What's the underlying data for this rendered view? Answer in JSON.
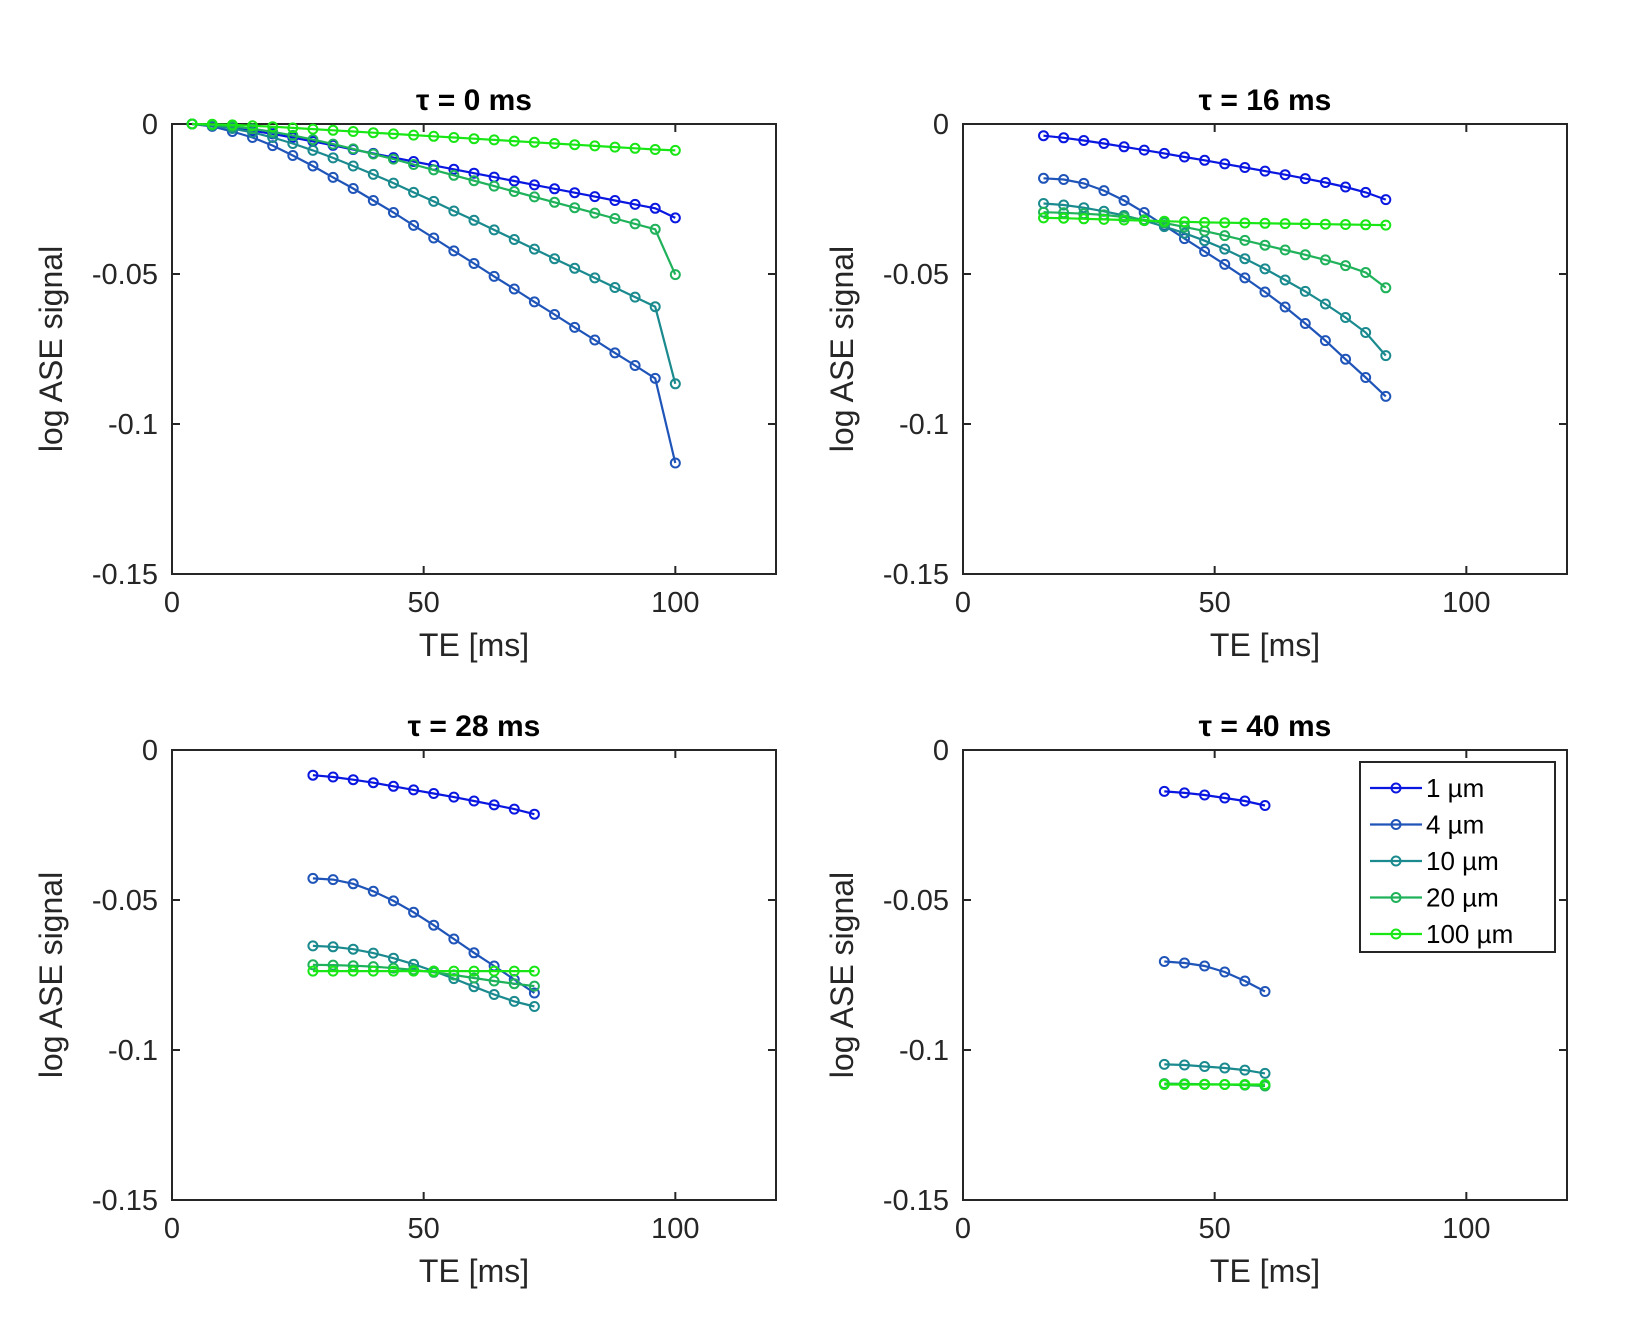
{
  "figure": {
    "series_styles": [
      {
        "name": "1 µm",
        "color": "#0a17e0"
      },
      {
        "name": "4 µm",
        "color": "#1f54b8"
      },
      {
        "name": "10 µm",
        "color": "#1a8a8e"
      },
      {
        "name": "20 µm",
        "color": "#1fb25a"
      },
      {
        "name": "100 µm",
        "color": "#19e615"
      }
    ]
  },
  "chart_data": [
    {
      "type": "line",
      "title": "τ = 0 ms",
      "xlabel": "TE  [ms]",
      "ylabel": "log ASE signal",
      "xlim": [
        0,
        120
      ],
      "ylim": [
        -0.15,
        0
      ],
      "xticks": [
        0,
        50,
        100
      ],
      "xtick_labels": [
        "0",
        "50",
        "100"
      ],
      "yticks": [
        0,
        -0.05,
        -0.1,
        -0.15
      ],
      "ytick_labels": [
        "0",
        "-0.05",
        "-0.1",
        "-0.15"
      ],
      "x": [
        4,
        8,
        12,
        16,
        20,
        24,
        28,
        32,
        36,
        40,
        44,
        48,
        52,
        56,
        60,
        64,
        68,
        72,
        76,
        80,
        84,
        88,
        92,
        96,
        100
      ],
      "series": [
        {
          "name": "1 µm",
          "values": [
            0,
            -0.0004,
            -0.0012,
            -0.0022,
            -0.0033,
            -0.0045,
            -0.0058,
            -0.0071,
            -0.0085,
            -0.0098,
            -0.0112,
            -0.0125,
            -0.0138,
            -0.0151,
            -0.0164,
            -0.0177,
            -0.019,
            -0.0203,
            -0.0216,
            -0.0229,
            -0.0242,
            -0.0255,
            -0.0268,
            -0.0281,
            -0.0313
          ]
        },
        {
          "name": "4 µm",
          "values": [
            0,
            -0.0008,
            -0.0025,
            -0.0045,
            -0.0072,
            -0.0105,
            -0.014,
            -0.0178,
            -0.0215,
            -0.0255,
            -0.0295,
            -0.0338,
            -0.038,
            -0.0423,
            -0.0465,
            -0.0508,
            -0.055,
            -0.0593,
            -0.0635,
            -0.0678,
            -0.072,
            -0.0763,
            -0.0805,
            -0.0848,
            -0.113
          ]
        },
        {
          "name": "10 µm",
          "values": [
            0,
            -0.0005,
            -0.0015,
            -0.0028,
            -0.0045,
            -0.0065,
            -0.0088,
            -0.0113,
            -0.014,
            -0.0168,
            -0.0197,
            -0.0228,
            -0.0258,
            -0.029,
            -0.0321,
            -0.0353,
            -0.0385,
            -0.0417,
            -0.0449,
            -0.0481,
            -0.0513,
            -0.0545,
            -0.0577,
            -0.0609,
            -0.0866
          ]
        },
        {
          "name": "20 µm",
          "values": [
            0,
            -0.0003,
            -0.0008,
            -0.0016,
            -0.0026,
            -0.0038,
            -0.0052,
            -0.0067,
            -0.0083,
            -0.01,
            -0.0117,
            -0.0135,
            -0.0153,
            -0.0171,
            -0.0189,
            -0.0207,
            -0.0225,
            -0.0243,
            -0.0261,
            -0.0279,
            -0.0297,
            -0.0315,
            -0.0333,
            -0.0351,
            -0.0502
          ]
        },
        {
          "name": "100 µm",
          "values": [
            0,
            -0.0001,
            -0.0003,
            -0.0006,
            -0.0009,
            -0.0013,
            -0.0017,
            -0.0021,
            -0.0025,
            -0.0029,
            -0.0033,
            -0.0037,
            -0.0041,
            -0.0045,
            -0.0049,
            -0.0053,
            -0.0057,
            -0.0061,
            -0.0065,
            -0.0069,
            -0.0073,
            -0.0077,
            -0.0081,
            -0.0085,
            -0.0088
          ]
        }
      ]
    },
    {
      "type": "line",
      "title": "τ = 16 ms",
      "xlabel": "TE  [ms]",
      "ylabel": "log ASE signal",
      "xlim": [
        0,
        120
      ],
      "ylim": [
        -0.15,
        0
      ],
      "xticks": [
        0,
        50,
        100
      ],
      "xtick_labels": [
        "0",
        "50",
        "100"
      ],
      "yticks": [
        0,
        -0.05,
        -0.1,
        -0.15
      ],
      "ytick_labels": [
        "0",
        "-0.05",
        "-0.1",
        "-0.15"
      ],
      "x": [
        16,
        20,
        24,
        28,
        32,
        36,
        40,
        44,
        48,
        52,
        56,
        60,
        64,
        68,
        72,
        76,
        80,
        84
      ],
      "series": [
        {
          "name": "1 µm",
          "values": [
            -0.0039,
            -0.0046,
            -0.0055,
            -0.0065,
            -0.0076,
            -0.0087,
            -0.0098,
            -0.011,
            -0.0121,
            -0.0133,
            -0.0145,
            -0.0157,
            -0.0169,
            -0.0182,
            -0.0195,
            -0.021,
            -0.0228,
            -0.0252
          ]
        },
        {
          "name": "4 µm",
          "values": [
            -0.0181,
            -0.0185,
            -0.0198,
            -0.0222,
            -0.0255,
            -0.0295,
            -0.0338,
            -0.0382,
            -0.0425,
            -0.0468,
            -0.0513,
            -0.056,
            -0.061,
            -0.0665,
            -0.0722,
            -0.0784,
            -0.0845,
            -0.0908
          ]
        },
        {
          "name": "10 µm",
          "values": [
            -0.0265,
            -0.027,
            -0.0279,
            -0.0291,
            -0.0305,
            -0.0322,
            -0.0342,
            -0.0364,
            -0.0389,
            -0.0417,
            -0.0449,
            -0.0483,
            -0.052,
            -0.0558,
            -0.06,
            -0.0645,
            -0.0695,
            -0.0772
          ]
        },
        {
          "name": "20 µm",
          "values": [
            -0.0294,
            -0.0296,
            -0.0299,
            -0.0303,
            -0.031,
            -0.0319,
            -0.033,
            -0.0343,
            -0.0357,
            -0.0372,
            -0.0388,
            -0.0404,
            -0.042,
            -0.0436,
            -0.0453,
            -0.0472,
            -0.0495,
            -0.0546
          ]
        },
        {
          "name": "100 µm",
          "values": [
            -0.0313,
            -0.0314,
            -0.0316,
            -0.0318,
            -0.032,
            -0.0322,
            -0.0324,
            -0.0326,
            -0.0328,
            -0.0329,
            -0.033,
            -0.0331,
            -0.0332,
            -0.0333,
            -0.0334,
            -0.0335,
            -0.0336,
            -0.0337
          ]
        }
      ]
    },
    {
      "type": "line",
      "title": "τ = 28 ms",
      "xlabel": "TE  [ms]",
      "ylabel": "log ASE signal",
      "xlim": [
        0,
        120
      ],
      "ylim": [
        -0.15,
        0
      ],
      "xticks": [
        0,
        50,
        100
      ],
      "xtick_labels": [
        "0",
        "50",
        "100"
      ],
      "yticks": [
        0,
        -0.05,
        -0.1,
        -0.15
      ],
      "ytick_labels": [
        "0",
        "-0.05",
        "-0.1",
        "-0.15"
      ],
      "x": [
        28,
        32,
        36,
        40,
        44,
        48,
        52,
        56,
        60,
        64,
        68,
        72
      ],
      "series": [
        {
          "name": "1 µm",
          "values": [
            -0.0084,
            -0.009,
            -0.0099,
            -0.0109,
            -0.0121,
            -0.0133,
            -0.0145,
            -0.0157,
            -0.017,
            -0.0183,
            -0.0197,
            -0.0214
          ]
        },
        {
          "name": "4 µm",
          "values": [
            -0.0428,
            -0.0432,
            -0.0446,
            -0.0471,
            -0.0503,
            -0.0541,
            -0.0584,
            -0.063,
            -0.0676,
            -0.072,
            -0.0765,
            -0.081
          ]
        },
        {
          "name": "10 µm",
          "values": [
            -0.0653,
            -0.0656,
            -0.0664,
            -0.0677,
            -0.0694,
            -0.0714,
            -0.0737,
            -0.0762,
            -0.0789,
            -0.0815,
            -0.0838,
            -0.0855
          ]
        },
        {
          "name": "20 µm",
          "values": [
            -0.0716,
            -0.0717,
            -0.0719,
            -0.0722,
            -0.0727,
            -0.0733,
            -0.0741,
            -0.075,
            -0.076,
            -0.077,
            -0.0779,
            -0.0787
          ]
        },
        {
          "name": "100 µm",
          "values": [
            -0.0737,
            -0.0737,
            -0.0737,
            -0.0737,
            -0.0737,
            -0.0737,
            -0.0737,
            -0.0737,
            -0.0737,
            -0.0737,
            -0.0737,
            -0.0737
          ]
        }
      ]
    },
    {
      "type": "line",
      "title": "τ = 40 ms",
      "xlabel": "TE  [ms]",
      "ylabel": "log ASE signal",
      "xlim": [
        0,
        120
      ],
      "ylim": [
        -0.15,
        0
      ],
      "xticks": [
        0,
        50,
        100
      ],
      "xtick_labels": [
        "0",
        "50",
        "100"
      ],
      "yticks": [
        0,
        -0.05,
        -0.1,
        -0.15
      ],
      "ytick_labels": [
        "0",
        "-0.05",
        "-0.1",
        "-0.15"
      ],
      "legend": {
        "location": "top-right",
        "entries": [
          "1 µm",
          "4 µm",
          "10 µm",
          "20 µm",
          "100 µm"
        ]
      },
      "x": [
        40,
        44,
        48,
        52,
        56,
        60
      ],
      "series": [
        {
          "name": "1 µm",
          "values": [
            -0.0138,
            -0.0143,
            -0.015,
            -0.016,
            -0.017,
            -0.0185
          ]
        },
        {
          "name": "4 µm",
          "values": [
            -0.0705,
            -0.071,
            -0.072,
            -0.074,
            -0.077,
            -0.0805
          ]
        },
        {
          "name": "10 µm",
          "values": [
            -0.1048,
            -0.105,
            -0.1055,
            -0.106,
            -0.1067,
            -0.1078
          ]
        },
        {
          "name": "20 µm",
          "values": [
            -0.1112,
            -0.1113,
            -0.1114,
            -0.1115,
            -0.1117,
            -0.112
          ]
        },
        {
          "name": "100 µm",
          "values": [
            -0.1115,
            -0.1115,
            -0.1115,
            -0.1115,
            -0.1115,
            -0.1115
          ]
        }
      ]
    }
  ]
}
